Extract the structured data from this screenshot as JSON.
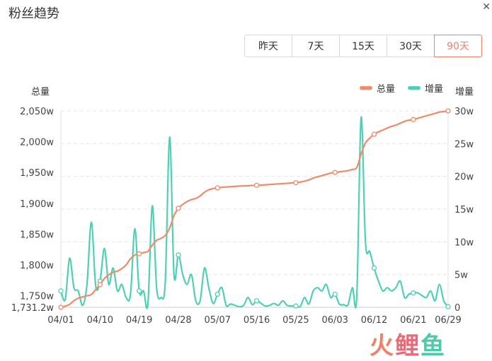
{
  "page": {
    "title": "粉丝趋势",
    "close_glyph": "✕"
  },
  "range_buttons": [
    {
      "label": "昨天",
      "active": false
    },
    {
      "label": "7天",
      "active": false
    },
    {
      "label": "15天",
      "active": false
    },
    {
      "label": "30天",
      "active": false
    },
    {
      "label": "90天",
      "active": true
    }
  ],
  "colors": {
    "total": "#f08a6a",
    "increment": "#4fd0b4",
    "active": "#f0806a",
    "grid": "#e6e6e6"
  },
  "watermark": [
    "火",
    "鲤",
    "鱼"
  ],
  "chart_data": {
    "type": "line",
    "left_axis": {
      "title": "总量",
      "ticks": [
        {
          "value": 1731.2,
          "label": "1,731.2w"
        },
        {
          "value": 1750,
          "label": "1,750w"
        },
        {
          "value": 1800,
          "label": "1,800w"
        },
        {
          "value": 1850,
          "label": "1,850w"
        },
        {
          "value": 1900,
          "label": "1,900w"
        },
        {
          "value": 1950,
          "label": "1,950w"
        },
        {
          "value": 2000,
          "label": "2,000w"
        },
        {
          "value": 2050,
          "label": "2,050w"
        }
      ],
      "ylim": [
        1731.2,
        2050
      ]
    },
    "right_axis": {
      "title": "增量",
      "ticks": [
        {
          "value": 0,
          "label": "0"
        },
        {
          "value": 5,
          "label": "5w"
        },
        {
          "value": 10,
          "label": "10w"
        },
        {
          "value": 15,
          "label": "15w"
        },
        {
          "value": 20,
          "label": "20w"
        },
        {
          "value": 25,
          "label": "25w"
        },
        {
          "value": 30,
          "label": "30w"
        }
      ],
      "ylim": [
        0,
        30
      ]
    },
    "x_tick_labels": [
      {
        "day": 0,
        "label": "04/01"
      },
      {
        "day": 9,
        "label": "04/10"
      },
      {
        "day": 18,
        "label": "04/19"
      },
      {
        "day": 27,
        "label": "04/28"
      },
      {
        "day": 36,
        "label": "05/07"
      },
      {
        "day": 45,
        "label": "05/16"
      },
      {
        "day": 54,
        "label": "05/25"
      },
      {
        "day": 63,
        "label": "06/03"
      },
      {
        "day": 72,
        "label": "06/12"
      },
      {
        "day": 81,
        "label": "06/21"
      },
      {
        "day": 89,
        "label": "06/29"
      }
    ],
    "xlim": [
      0,
      89
    ],
    "legend_position": "top-right",
    "series": [
      {
        "name": "总量",
        "axis": "left",
        "points": [
          [
            0,
            1731.2
          ],
          [
            1,
            1733
          ],
          [
            2,
            1736
          ],
          [
            3,
            1742
          ],
          [
            4,
            1746
          ],
          [
            5,
            1748
          ],
          [
            6,
            1750
          ],
          [
            7,
            1752
          ],
          [
            8,
            1760
          ],
          [
            9,
            1768
          ],
          [
            10,
            1778
          ],
          [
            11,
            1784
          ],
          [
            12,
            1788
          ],
          [
            13,
            1790
          ],
          [
            14,
            1794
          ],
          [
            15,
            1800
          ],
          [
            16,
            1810
          ],
          [
            17,
            1816
          ],
          [
            18,
            1818
          ],
          [
            19,
            1820
          ],
          [
            20,
            1822
          ],
          [
            21,
            1832
          ],
          [
            22,
            1840
          ],
          [
            23,
            1843
          ],
          [
            24,
            1848
          ],
          [
            25,
            1860
          ],
          [
            26,
            1880
          ],
          [
            27,
            1892
          ],
          [
            28,
            1898
          ],
          [
            29,
            1903
          ],
          [
            30,
            1906
          ],
          [
            31,
            1908
          ],
          [
            32,
            1912
          ],
          [
            33,
            1918
          ],
          [
            34,
            1922
          ],
          [
            35,
            1924
          ],
          [
            36,
            1925
          ],
          [
            37,
            1926
          ],
          [
            38,
            1926.5
          ],
          [
            39,
            1927
          ],
          [
            40,
            1927.5
          ],
          [
            41,
            1928
          ],
          [
            42,
            1928.3
          ],
          [
            43,
            1928.6
          ],
          [
            44,
            1929
          ],
          [
            45,
            1929.3
          ],
          [
            46,
            1929.6
          ],
          [
            47,
            1930
          ],
          [
            48,
            1930.5
          ],
          [
            49,
            1931
          ],
          [
            50,
            1931.5
          ],
          [
            51,
            1932
          ],
          [
            52,
            1932.5
          ],
          [
            53,
            1933
          ],
          [
            54,
            1933.5
          ],
          [
            55,
            1934.5
          ],
          [
            56,
            1936
          ],
          [
            57,
            1938
          ],
          [
            58,
            1941
          ],
          [
            59,
            1943
          ],
          [
            60,
            1945
          ],
          [
            61,
            1947
          ],
          [
            62,
            1949
          ],
          [
            63,
            1950
          ],
          [
            64,
            1951
          ],
          [
            65,
            1952
          ],
          [
            66,
            1953
          ],
          [
            67,
            1955
          ],
          [
            68,
            1958
          ],
          [
            69,
            1980
          ],
          [
            70,
            1998
          ],
          [
            71,
            2006
          ],
          [
            72,
            2012
          ],
          [
            73,
            2016
          ],
          [
            74,
            2019
          ],
          [
            75,
            2022
          ],
          [
            76,
            2025
          ],
          [
            77,
            2027
          ],
          [
            78,
            2030
          ],
          [
            79,
            2033
          ],
          [
            80,
            2035
          ],
          [
            81,
            2036
          ],
          [
            82,
            2038
          ],
          [
            83,
            2040
          ],
          [
            84,
            2042
          ],
          [
            85,
            2044
          ],
          [
            86,
            2046
          ],
          [
            87,
            2048
          ],
          [
            88,
            2049
          ],
          [
            89,
            2050
          ]
        ]
      },
      {
        "name": "增量",
        "axis": "right",
        "points": [
          [
            0,
            2.5
          ],
          [
            1,
            1.2
          ],
          [
            2,
            7.5
          ],
          [
            3,
            3
          ],
          [
            4,
            2.5
          ],
          [
            5,
            0.3
          ],
          [
            6,
            3.5
          ],
          [
            7,
            13
          ],
          [
            8,
            3.3
          ],
          [
            9,
            4
          ],
          [
            10,
            9
          ],
          [
            11,
            3.5
          ],
          [
            12,
            6
          ],
          [
            13,
            2.5
          ],
          [
            14,
            3.5
          ],
          [
            15,
            1.5
          ],
          [
            16,
            2
          ],
          [
            17,
            12
          ],
          [
            18,
            2.5
          ],
          [
            19,
            2.5
          ],
          [
            20,
            0.5
          ],
          [
            21,
            15.5
          ],
          [
            22,
            3
          ],
          [
            23,
            1.5
          ],
          [
            24,
            4
          ],
          [
            25,
            26
          ],
          [
            26,
            5
          ],
          [
            27,
            8
          ],
          [
            28,
            5
          ],
          [
            29,
            3.5
          ],
          [
            30,
            5
          ],
          [
            31,
            1
          ],
          [
            32,
            1
          ],
          [
            33,
            6
          ],
          [
            34,
            3
          ],
          [
            35,
            0.6
          ],
          [
            36,
            2
          ],
          [
            37,
            3
          ],
          [
            38,
            0.3
          ],
          [
            39,
            0.5
          ],
          [
            40,
            0.3
          ],
          [
            41,
            0.1
          ],
          [
            42,
            0.3
          ],
          [
            43,
            1.5
          ],
          [
            44,
            0.4
          ],
          [
            45,
            1
          ],
          [
            46,
            0.6
          ],
          [
            47,
            0.2
          ],
          [
            48,
            0.3
          ],
          [
            49,
            0.6
          ],
          [
            50,
            0.3
          ],
          [
            51,
            1
          ],
          [
            52,
            0.3
          ],
          [
            53,
            0.2
          ],
          [
            54,
            0.2
          ],
          [
            55,
            0.1
          ],
          [
            56,
            1.5
          ],
          [
            57,
            0.5
          ],
          [
            58,
            2.5
          ],
          [
            59,
            3
          ],
          [
            60,
            2.5
          ],
          [
            61,
            3.5
          ],
          [
            62,
            1.5
          ],
          [
            63,
            2
          ],
          [
            64,
            0.5
          ],
          [
            65,
            0.4
          ],
          [
            66,
            0.4
          ],
          [
            67,
            3
          ],
          [
            68,
            1.5
          ],
          [
            69,
            29
          ],
          [
            70,
            10
          ],
          [
            71,
            8.5
          ],
          [
            72,
            6
          ],
          [
            73,
            4
          ],
          [
            74,
            2.5
          ],
          [
            75,
            3
          ],
          [
            76,
            2.5
          ],
          [
            77,
            3
          ],
          [
            78,
            4
          ],
          [
            79,
            1.5
          ],
          [
            80,
            2
          ],
          [
            81,
            2.2
          ],
          [
            82,
            2.2
          ],
          [
            83,
            1.8
          ],
          [
            84,
            1.5
          ],
          [
            85,
            2.5
          ],
          [
            86,
            1
          ],
          [
            87,
            3.5
          ],
          [
            88,
            1
          ],
          [
            89,
            0.1
          ]
        ]
      }
    ],
    "markers_every_days": 9
  }
}
